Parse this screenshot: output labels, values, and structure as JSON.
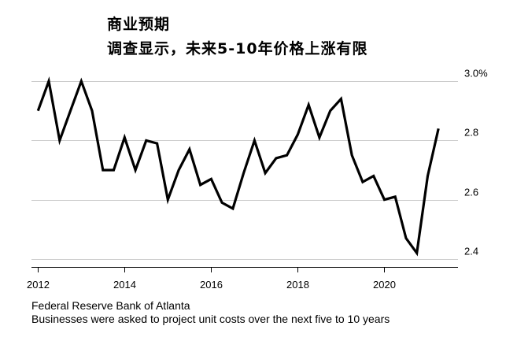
{
  "chart_data": {
    "type": "line",
    "title": "商业预期",
    "subtitle": "调查显示，未来5-10年价格上涨有限",
    "xlabel": "",
    "ylabel": "",
    "x": [
      2012.0,
      2012.25,
      2012.5,
      2012.75,
      2013.0,
      2013.25,
      2013.5,
      2013.75,
      2014.0,
      2014.25,
      2014.5,
      2014.75,
      2015.0,
      2015.25,
      2015.5,
      2015.75,
      2016.0,
      2016.25,
      2016.5,
      2016.75,
      2017.0,
      2017.25,
      2017.5,
      2017.75,
      2018.0,
      2018.25,
      2018.5,
      2018.75,
      2019.0,
      2019.25,
      2019.5,
      2019.75,
      2020.0,
      2020.25,
      2020.5,
      2020.75,
      2021.0,
      2021.25
    ],
    "series": [
      {
        "values": [
          2.9,
          3.0,
          2.8,
          2.9,
          3.0,
          2.9,
          2.7,
          2.7,
          2.81,
          2.7,
          2.8,
          2.79,
          2.6,
          2.7,
          2.77,
          2.65,
          2.67,
          2.59,
          2.57,
          2.69,
          2.8,
          2.69,
          2.74,
          2.75,
          2.82,
          2.92,
          2.81,
          2.9,
          2.94,
          2.75,
          2.66,
          2.68,
          2.6,
          2.61,
          2.47,
          2.42,
          2.68,
          2.84
        ]
      }
    ],
    "xlim": [
      2011.85,
      2021.7
    ],
    "ylim": [
      2.36,
      3.04
    ],
    "x_ticks": [
      2012,
      2014,
      2016,
      2018,
      2020
    ],
    "x_tick_labels": [
      "2012",
      "2014",
      "2016",
      "2018",
      "2020"
    ],
    "y_ticks": [
      2.4,
      2.6,
      2.8,
      3.0
    ],
    "y_tick_labels": [
      "2.4",
      "2.6",
      "2.8",
      "3.0%"
    ],
    "grid": "horizontal",
    "legend": "none",
    "line_color": "#000000",
    "grid_color": "#cccccc",
    "axis_color": "#000000"
  },
  "footer": {
    "source": "Federal Reserve Bank of Atlanta",
    "note": "Businesses were asked to project unit costs over the next five to 10 years"
  }
}
